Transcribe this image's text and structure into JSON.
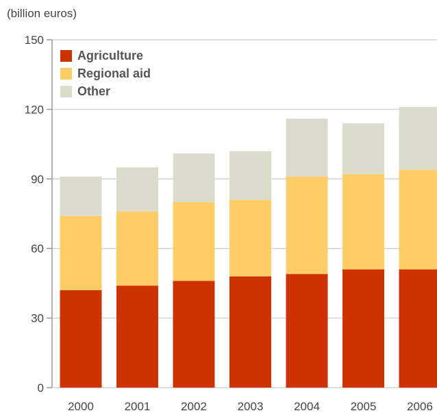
{
  "chart_data": {
    "type": "bar",
    "stacked": true,
    "unit_label": "(billion euros)",
    "categories": [
      "2000",
      "2001",
      "2002",
      "2003",
      "2004",
      "2005",
      "2006"
    ],
    "series": [
      {
        "name": "Agriculture",
        "color": "#cc3300",
        "values": [
          42,
          44,
          46,
          48,
          49,
          51,
          51
        ]
      },
      {
        "name": "Regional aid",
        "color": "#ffcc66",
        "values": [
          32,
          32,
          34,
          33,
          42,
          41,
          43
        ]
      },
      {
        "name": "Other",
        "color": "#dcdccc",
        "values": [
          17,
          19,
          21,
          21,
          25,
          22,
          27
        ]
      }
    ],
    "ylim": [
      0,
      150
    ],
    "yticks": [
      0,
      30,
      60,
      90,
      120,
      150
    ],
    "grid": true,
    "legend_position": "top-left"
  }
}
